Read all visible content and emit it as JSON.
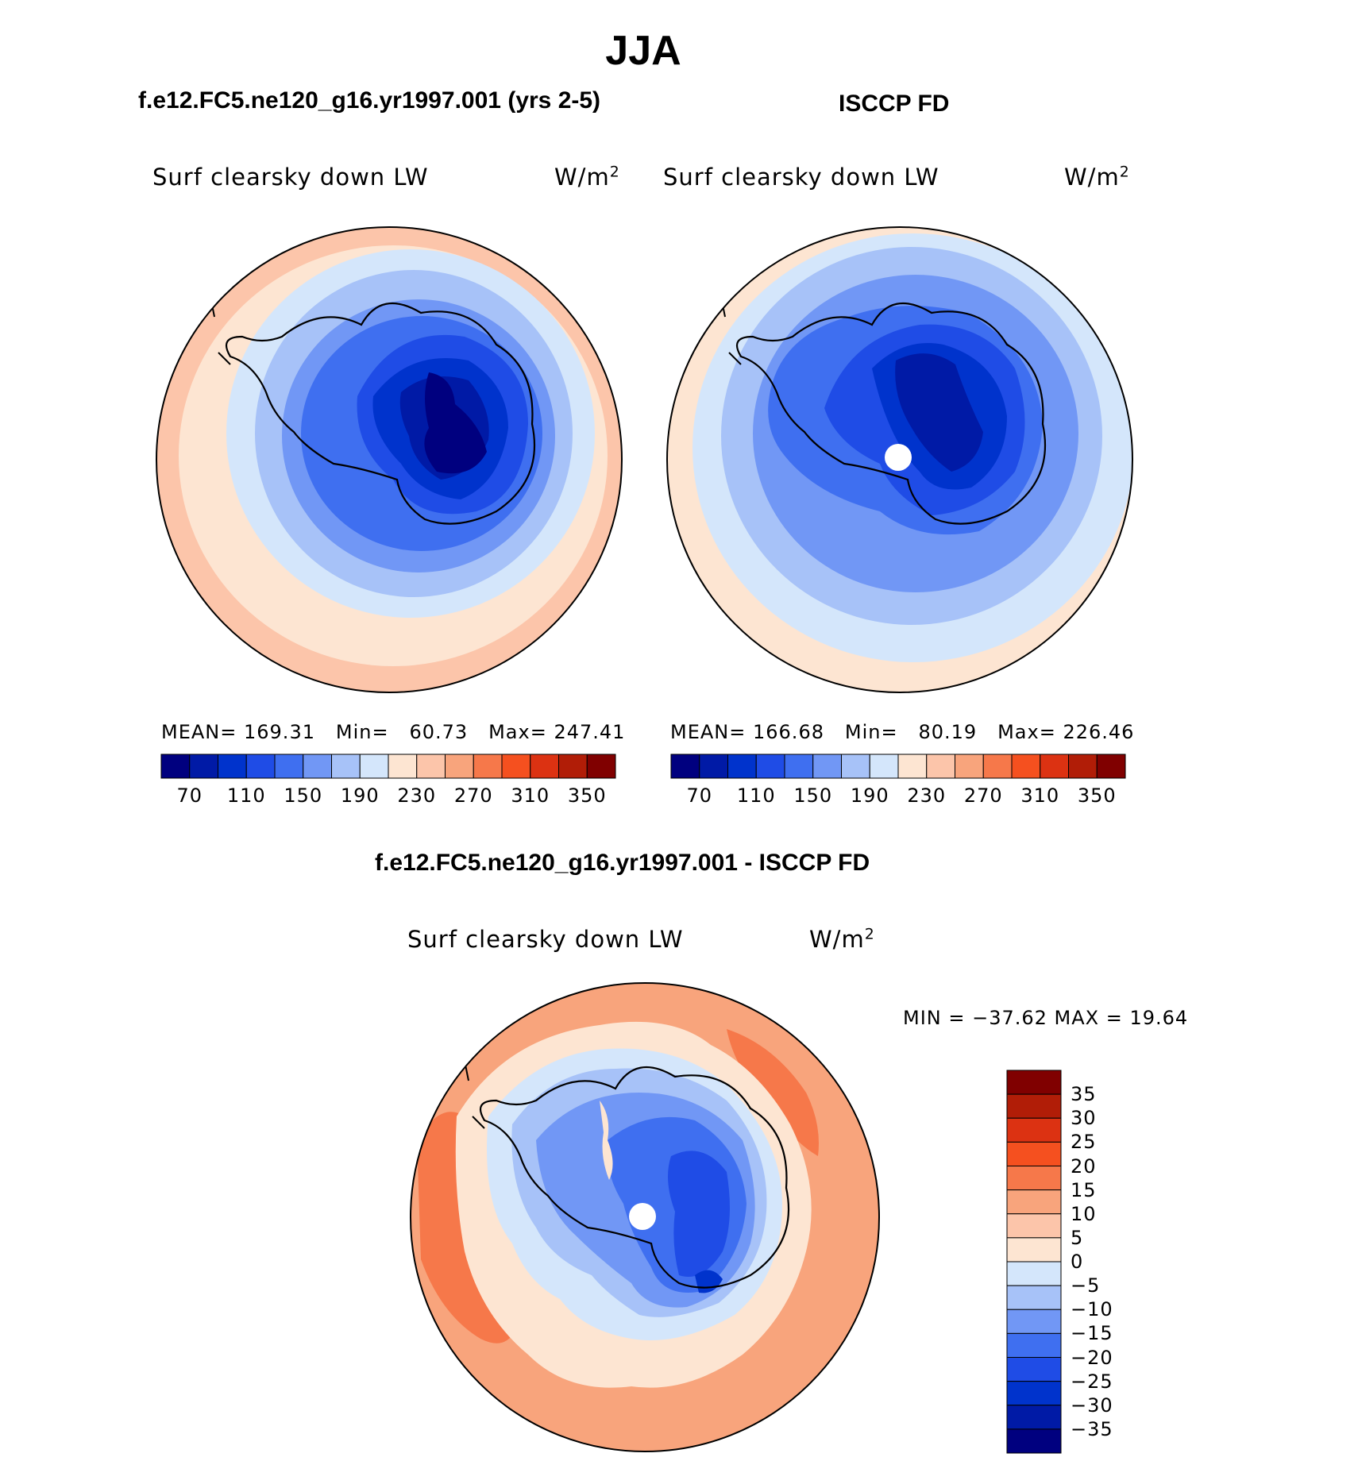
{
  "season": "JJA",
  "panel_left": {
    "case_title": "f.e12.FC5.ne120_g16.yr1997.001 (yrs 2-5)",
    "variable": "Surf clearsky down LW",
    "units": "W/m",
    "units_exp": "2",
    "mean_label": "MEAN=",
    "mean": "169.31",
    "min_label": "Min=",
    "min": "60.73",
    "max_label": "Max=",
    "max": "247.41"
  },
  "panel_right": {
    "case_title": "ISCCP FD",
    "variable": "Surf clearsky down LW",
    "units": "W/m",
    "units_exp": "2",
    "mean_label": "MEAN=",
    "mean": "166.68",
    "min_label": "Min=",
    "min": "80.19",
    "max_label": "Max=",
    "max": "226.46"
  },
  "panel_diff": {
    "case_title": "f.e12.FC5.ne120_g16.yr1997.001 - ISCCP FD",
    "variable": "Surf clearsky down LW",
    "units": "W/m",
    "units_exp": "2",
    "minmax_text": "MIN = −37.62 MAX =   19.64"
  },
  "colorbar_abs": {
    "colors": [
      "#00007f",
      "#001aa6",
      "#0033cc",
      "#1f4ce6",
      "#3f6ff0",
      "#7197f5",
      "#a7c2f8",
      "#d4e6fb",
      "#fde5d2",
      "#fcc5aa",
      "#f8a47c",
      "#f6784a",
      "#f5501f",
      "#dc3212",
      "#b11d07",
      "#800000"
    ],
    "tick_labels": [
      "70",
      "110",
      "150",
      "190",
      "230",
      "270",
      "310",
      "350"
    ]
  },
  "colorbar_diff": {
    "colors": [
      "#00007f",
      "#001aa6",
      "#0033cc",
      "#1f4ce6",
      "#3f6ff0",
      "#7197f5",
      "#a7c2f8",
      "#d4e6fb",
      "#fde5d2",
      "#fcc5aa",
      "#f8a47c",
      "#f6784a",
      "#f5501f",
      "#dc3212",
      "#b11d07",
      "#800000"
    ],
    "tick_labels": [
      "35",
      "30",
      "25",
      "20",
      "15",
      "10",
      "5",
      "0",
      "−5",
      "−10",
      "−15",
      "−20",
      "−25",
      "−30",
      "−35"
    ]
  },
  "chart_data": [
    {
      "type": "heatmap",
      "title": "Surf clearsky down LW",
      "subtitle": "f.e12.FC5.ne120_g16.yr1997.001 (yrs 2-5)",
      "units": "W/m2",
      "projection": "south polar stereographic",
      "mean": 169.31,
      "min": 60.73,
      "max": 247.41,
      "contour_levels": [
        70,
        90,
        110,
        130,
        150,
        170,
        190,
        210,
        230,
        250,
        270,
        290,
        310,
        330,
        350
      ]
    },
    {
      "type": "heatmap",
      "title": "Surf clearsky down LW",
      "subtitle": "ISCCP FD",
      "units": "W/m2",
      "projection": "south polar stereographic",
      "mean": 166.68,
      "min": 80.19,
      "max": 226.46,
      "contour_levels": [
        70,
        90,
        110,
        130,
        150,
        170,
        190,
        210,
        230,
        250,
        270,
        290,
        310,
        330,
        350
      ]
    },
    {
      "type": "heatmap",
      "title": "Surf clearsky down LW",
      "subtitle": "f.e12.FC5.ne120_g16.yr1997.001 - ISCCP FD",
      "units": "W/m2",
      "projection": "south polar stereographic",
      "min": -37.62,
      "max": 19.64,
      "contour_levels": [
        -35,
        -30,
        -25,
        -20,
        -15,
        -10,
        -5,
        0,
        5,
        10,
        15,
        20,
        25,
        30,
        35
      ]
    }
  ]
}
